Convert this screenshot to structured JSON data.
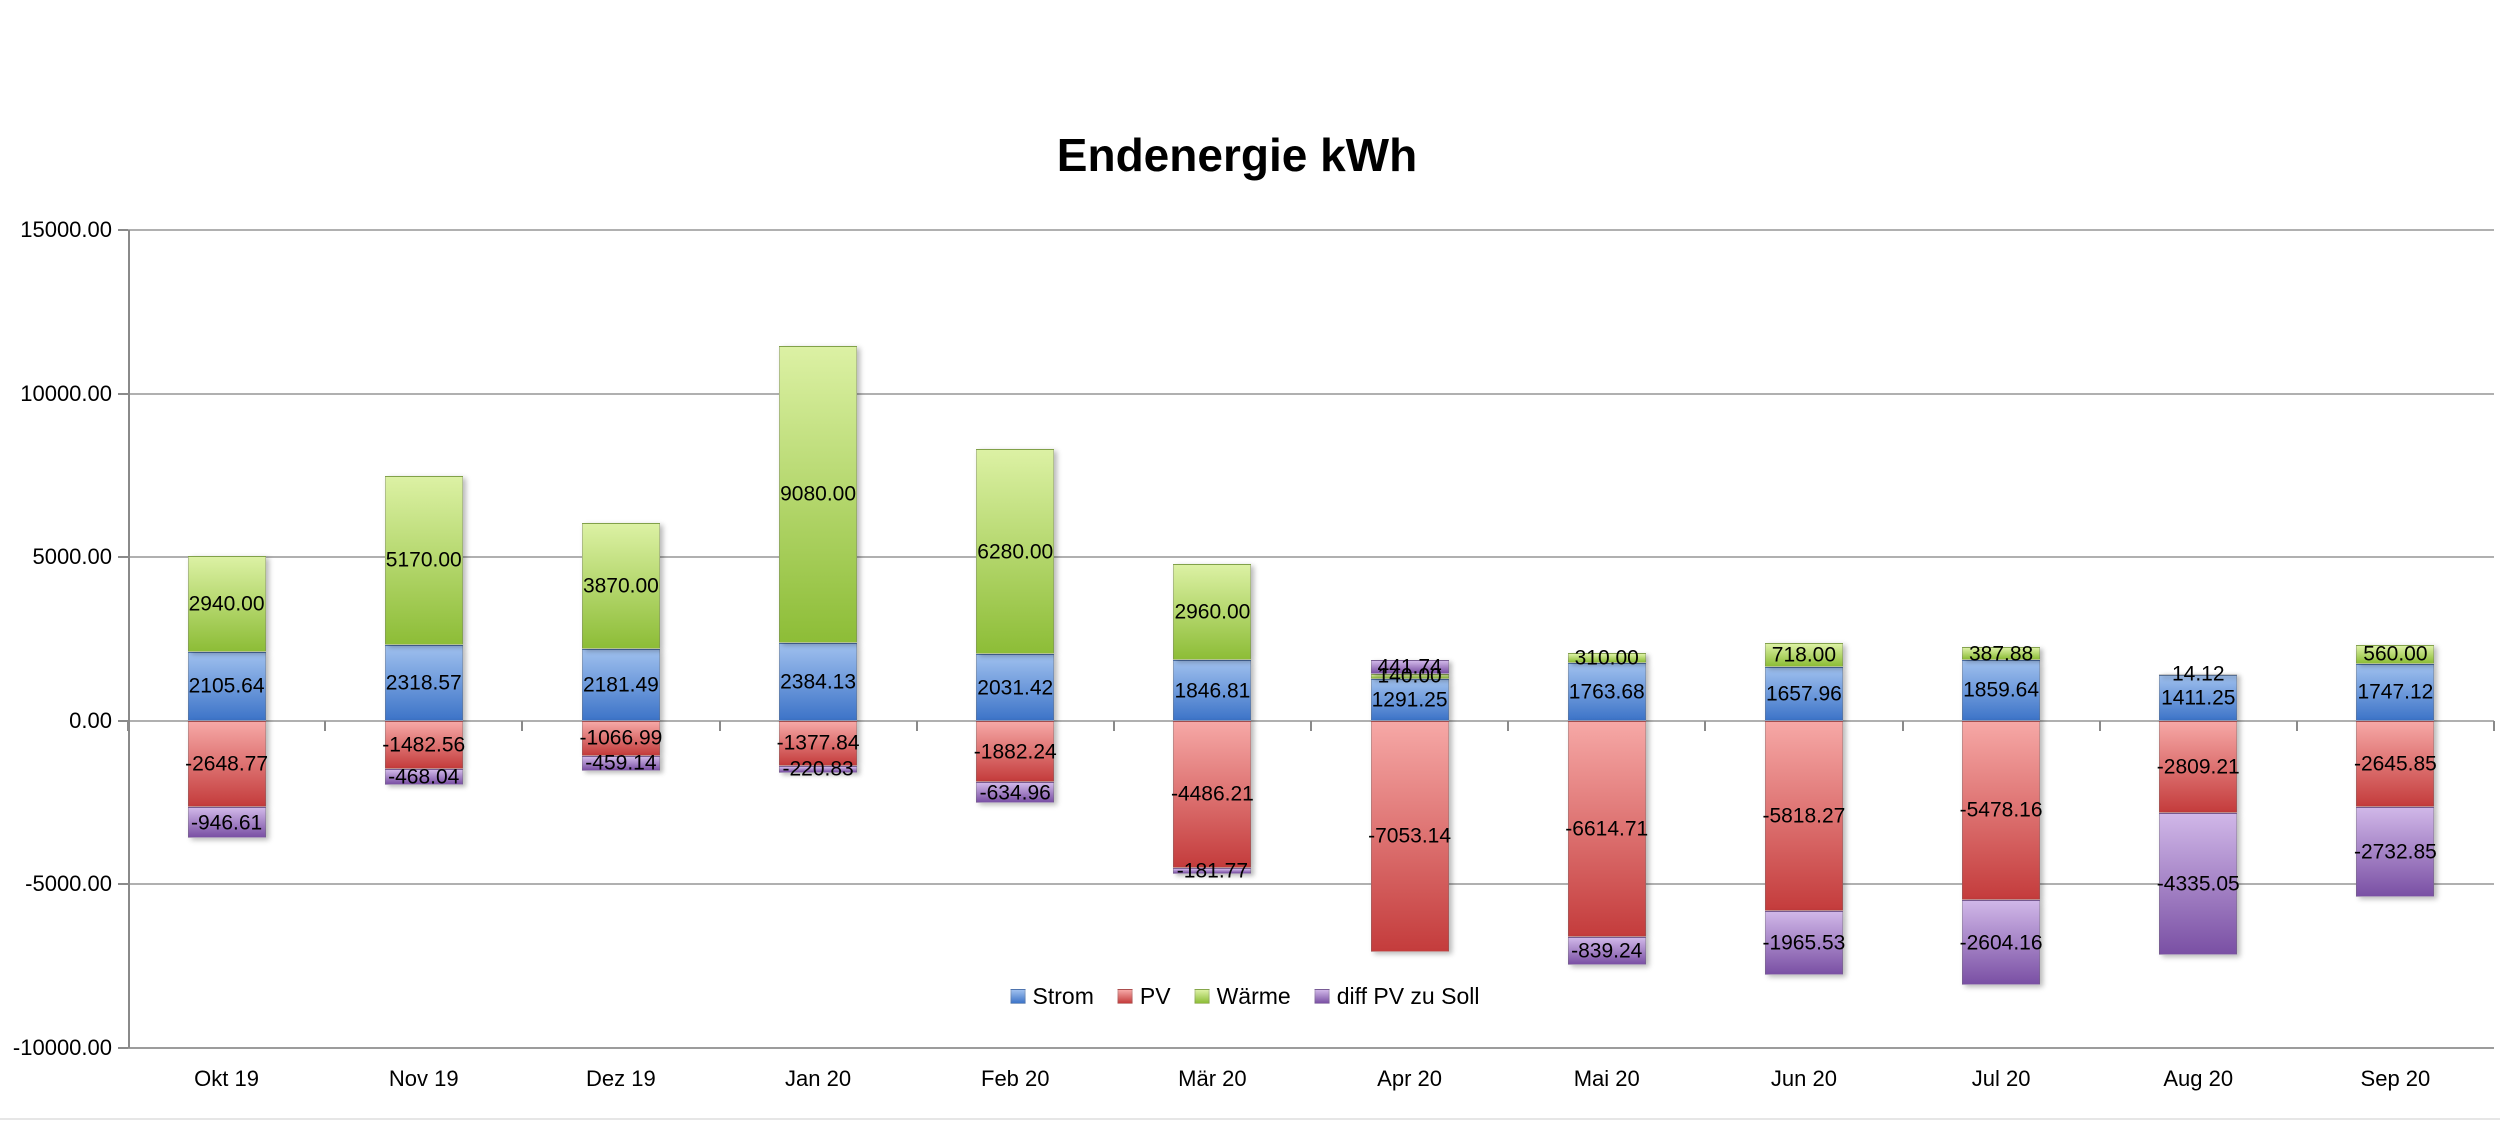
{
  "chart_data": {
    "type": "bar",
    "stacked": true,
    "title": "Endenergie kWh",
    "xlabel": "",
    "ylabel": "",
    "ylim": [
      -10000,
      15000
    ],
    "ytick_step": 5000,
    "ytick_labels": [
      "15000.00",
      "10000.00",
      "5000.00",
      "0.00",
      "-5000.00",
      "-10000.00"
    ],
    "grid": true,
    "legend_position": "bottom-center",
    "value_label_format": "0.00",
    "categories": [
      "Okt 19",
      "Nov 19",
      "Dez 19",
      "Jan 20",
      "Feb 20",
      "Mär 20",
      "Apr 20",
      "Mai 20",
      "Jun 20",
      "Jul 20",
      "Aug 20",
      "Sep 20"
    ],
    "series": [
      {
        "name": "Strom",
        "color_top": "#9FC0EE",
        "color_bottom": "#3D74C8",
        "values": [
          2105.64,
          2318.57,
          2181.49,
          2384.13,
          2031.42,
          1846.81,
          1291.25,
          1763.68,
          1657.96,
          1859.64,
          1411.25,
          1747.12
        ]
      },
      {
        "name": "PV",
        "color_top": "#F6A8A6",
        "color_bottom": "#C43C3C",
        "values": [
          -2648.77,
          -1482.56,
          -1066.99,
          -1377.84,
          -1882.24,
          -4486.21,
          -7053.14,
          -6614.71,
          -5818.27,
          -5478.16,
          -2809.21,
          -2645.85
        ]
      },
      {
        "name": "Wärme",
        "color_top": "#DCF1A4",
        "color_bottom": "#8DBD37",
        "values": [
          2940.0,
          5170.0,
          3870.0,
          9080.0,
          6280.0,
          2960.0,
          140.0,
          310.0,
          718.0,
          387.88,
          14.12,
          560.0
        ]
      },
      {
        "name": "diff PV zu Soll",
        "color_top": "#D0B7E8",
        "color_bottom": "#7A50A4",
        "values": [
          -946.61,
          -468.04,
          -459.14,
          -220.83,
          -634.96,
          -181.77,
          441.74,
          -839.24,
          -1965.53,
          -2604.16,
          -4335.05,
          -2732.85
        ]
      }
    ]
  }
}
